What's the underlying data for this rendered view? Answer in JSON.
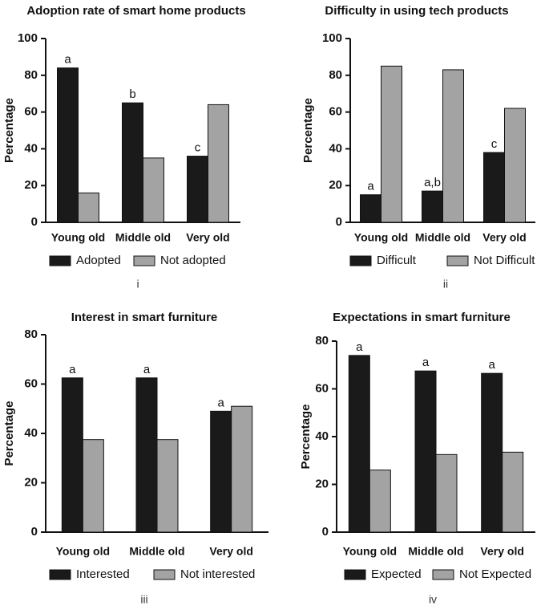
{
  "chart_data": [
    {
      "type": "bar",
      "title": "Adoption rate of smart home products",
      "y_label": "Percentage",
      "panel_label": "i",
      "categories": [
        "Young old",
        "Middle old",
        "Very old"
      ],
      "series": [
        {
          "name": "Adopted",
          "color": "#1a1a1a",
          "values": [
            84,
            65,
            36
          ]
        },
        {
          "name": "Not adopted",
          "color": "#a3a3a3",
          "values": [
            16,
            35,
            64
          ]
        }
      ],
      "annotations": [
        "a",
        "b",
        "c"
      ],
      "ylim": [
        0,
        100
      ],
      "yticks": [
        0,
        20,
        40,
        60,
        80,
        100
      ]
    },
    {
      "type": "bar",
      "title": "Difficulty in using tech products",
      "y_label": "Percentage",
      "panel_label": "ii",
      "categories": [
        "Young old",
        "Middle old",
        "Very old"
      ],
      "series": [
        {
          "name": "Difficult",
          "color": "#1a1a1a",
          "values": [
            15,
            17,
            38
          ]
        },
        {
          "name": "Not Difficult",
          "color": "#a3a3a3",
          "values": [
            85,
            83,
            62
          ]
        }
      ],
      "annotations": [
        "a",
        "a,b",
        "c"
      ],
      "ylim": [
        0,
        100
      ],
      "yticks": [
        0,
        20,
        40,
        60,
        80,
        100
      ]
    },
    {
      "type": "bar",
      "title": "Interest in smart furniture",
      "y_label": "Percentage",
      "panel_label": "iii",
      "categories": [
        "Young old",
        "Middle old",
        "Very old"
      ],
      "series": [
        {
          "name": "Interested",
          "color": "#1a1a1a",
          "values": [
            62.5,
            62.5,
            49
          ]
        },
        {
          "name": "Not interested",
          "color": "#a3a3a3",
          "values": [
            37.5,
            37.5,
            51
          ]
        }
      ],
      "annotations": [
        "a",
        "a",
        "a"
      ],
      "ylim": [
        0,
        80
      ],
      "yticks": [
        0,
        20,
        40,
        60,
        80
      ]
    },
    {
      "type": "bar",
      "title": "Expectations in smart furniture",
      "y_label": "Percentage",
      "panel_label": "iv",
      "categories": [
        "Young old",
        "Middle old",
        "Very old"
      ],
      "series": [
        {
          "name": "Expected",
          "color": "#1a1a1a",
          "values": [
            74,
            67.5,
            66.5
          ]
        },
        {
          "name": "Not Expected",
          "color": "#a3a3a3",
          "values": [
            26,
            32.5,
            33.5
          ]
        }
      ],
      "annotations": [
        "a",
        "a",
        "a"
      ],
      "ylim": [
        0,
        80
      ],
      "yticks": [
        0,
        20,
        40,
        60,
        80
      ]
    }
  ]
}
